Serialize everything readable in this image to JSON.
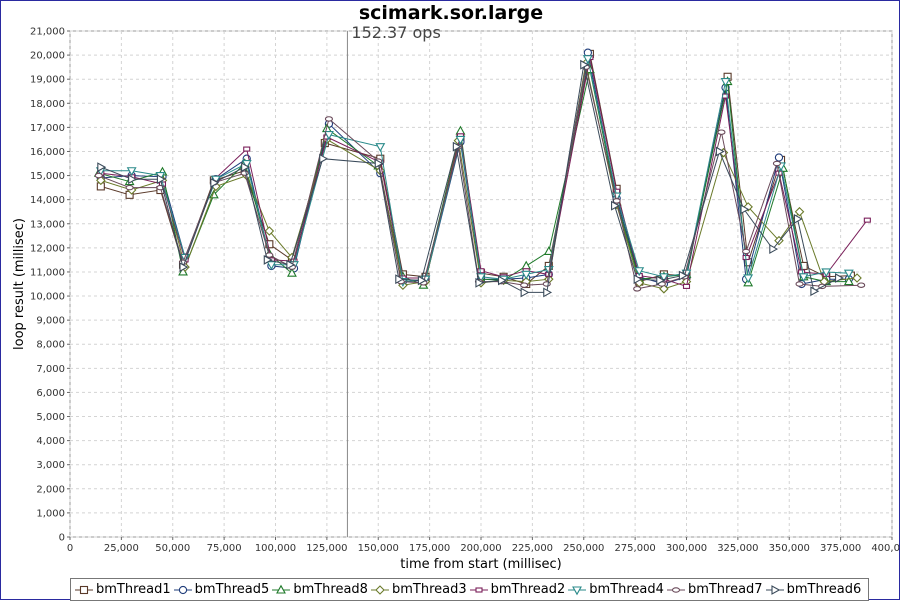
{
  "chart_data": {
    "type": "line",
    "title": "scimark.sor.large",
    "annotation": "152.37 ops",
    "annotation_x": 135000,
    "xlabel": "time from start (millisec)",
    "ylabel": "loop result (millisec)",
    "xlim": [
      0,
      400000
    ],
    "ylim": [
      0,
      21000
    ],
    "xticks": [
      0,
      25000,
      50000,
      75000,
      100000,
      125000,
      150000,
      175000,
      200000,
      225000,
      250000,
      275000,
      300000,
      325000,
      350000,
      375000,
      400000
    ],
    "xtick_labels": [
      "0",
      "25,000",
      "50,000",
      "75,000",
      "100,000",
      "125,000",
      "150,000",
      "175,000",
      "200,000",
      "225,000",
      "250,000",
      "275,000",
      "300,000",
      "325,000",
      "350,000",
      "375,000",
      "400,000"
    ],
    "yticks": [
      0,
      1000,
      2000,
      3000,
      4000,
      5000,
      6000,
      7000,
      8000,
      9000,
      10000,
      11000,
      12000,
      13000,
      14000,
      15000,
      16000,
      17000,
      18000,
      19000,
      20000,
      21000
    ],
    "ytick_labels": [
      "0",
      "1,000",
      "2,000",
      "3,000",
      "4,000",
      "5,000",
      "6,000",
      "7,000",
      "8,000",
      "9,000",
      "10,000",
      "11,000",
      "12,000",
      "13,000",
      "14,000",
      "15,000",
      "16,000",
      "17,000",
      "18,000",
      "19,000",
      "20,000",
      "21,000"
    ],
    "grid": true,
    "legend_position": "bottom",
    "series": [
      {
        "name": "bmThread1",
        "marker": "square",
        "color": "#5a3a2a",
        "points": [
          [
            15000,
            14550
          ],
          [
            29000,
            14200
          ],
          [
            44000,
            14400
          ],
          [
            55000,
            11300
          ],
          [
            70000,
            14800
          ],
          [
            85000,
            15200
          ],
          [
            97000,
            12150
          ],
          [
            108000,
            11500
          ],
          [
            124000,
            16350
          ],
          [
            151000,
            15700
          ],
          [
            162000,
            10900
          ],
          [
            173000,
            10800
          ],
          [
            190000,
            16550
          ],
          [
            200000,
            10950
          ],
          [
            211000,
            10800
          ],
          [
            222000,
            10500
          ],
          [
            233000,
            11250
          ],
          [
            253000,
            20050
          ],
          [
            266000,
            14450
          ],
          [
            277000,
            10600
          ],
          [
            289000,
            10900
          ],
          [
            300000,
            10850
          ],
          [
            320000,
            19100
          ],
          [
            330000,
            11400
          ],
          [
            346000,
            15650
          ],
          [
            357000,
            11250
          ],
          [
            368000,
            10800
          ],
          [
            380000,
            10850
          ]
        ]
      },
      {
        "name": "bmThread5",
        "marker": "circle",
        "color": "#1f3c7a",
        "points": [
          [
            15000,
            14900
          ],
          [
            30000,
            15000
          ],
          [
            45000,
            14950
          ],
          [
            56000,
            11600
          ],
          [
            71000,
            14850
          ],
          [
            86000,
            15700
          ],
          [
            98000,
            11250
          ],
          [
            109000,
            11150
          ],
          [
            126000,
            17150
          ],
          [
            151000,
            15100
          ],
          [
            162000,
            10600
          ],
          [
            173000,
            10650
          ],
          [
            190000,
            16400
          ],
          [
            200000,
            10700
          ],
          [
            211000,
            10700
          ],
          [
            222000,
            10750
          ],
          [
            233000,
            10900
          ],
          [
            252000,
            20100
          ],
          [
            266000,
            14050
          ],
          [
            277000,
            10800
          ],
          [
            289000,
            10500
          ],
          [
            300000,
            10800
          ],
          [
            319000,
            18650
          ],
          [
            329000,
            10700
          ],
          [
            345000,
            15750
          ],
          [
            356000,
            10500
          ],
          [
            368000,
            10700
          ],
          [
            379000,
            10700
          ]
        ]
      },
      {
        "name": "bmThread8",
        "marker": "triangle-up",
        "color": "#1f7a2a",
        "points": [
          [
            14000,
            15100
          ],
          [
            29000,
            14750
          ],
          [
            45000,
            15150
          ],
          [
            55000,
            11000
          ],
          [
            70000,
            14200
          ],
          [
            85000,
            15500
          ],
          [
            97000,
            11750
          ],
          [
            108000,
            10950
          ],
          [
            125000,
            16950
          ],
          [
            150000,
            15400
          ],
          [
            162000,
            10800
          ],
          [
            172000,
            10450
          ],
          [
            190000,
            16850
          ],
          [
            200000,
            10700
          ],
          [
            211000,
            10650
          ],
          [
            222000,
            11250
          ],
          [
            233000,
            11850
          ],
          [
            253000,
            19400
          ],
          [
            266000,
            13900
          ],
          [
            277000,
            10700
          ],
          [
            289000,
            10800
          ],
          [
            300000,
            10900
          ],
          [
            320000,
            18900
          ],
          [
            330000,
            10550
          ],
          [
            347000,
            15300
          ],
          [
            357000,
            10800
          ],
          [
            368000,
            10600
          ],
          [
            379000,
            10600
          ]
        ]
      },
      {
        "name": "bmThread3",
        "marker": "diamond",
        "color": "#6a7a2a",
        "points": [
          [
            15000,
            14800
          ],
          [
            30000,
            14400
          ],
          [
            45000,
            14800
          ],
          [
            56000,
            11200
          ],
          [
            71000,
            14550
          ],
          [
            86000,
            15000
          ],
          [
            97000,
            12700
          ],
          [
            108000,
            11600
          ],
          [
            125000,
            16500
          ],
          [
            151000,
            15200
          ],
          [
            162000,
            10450
          ],
          [
            173000,
            10600
          ],
          [
            189000,
            16450
          ],
          [
            200000,
            10550
          ],
          [
            211000,
            10650
          ],
          [
            222000,
            10600
          ],
          [
            233000,
            10700
          ],
          [
            251000,
            19650
          ],
          [
            266000,
            13800
          ],
          [
            277000,
            10550
          ],
          [
            289000,
            10300
          ],
          [
            300000,
            10600
          ],
          [
            318000,
            15950
          ],
          [
            330000,
            13700
          ],
          [
            345000,
            12300
          ],
          [
            355000,
            13500
          ],
          [
            367000,
            10600
          ],
          [
            383000,
            10750
          ]
        ]
      },
      {
        "name": "bmThread2",
        "marker": "square-small",
        "color": "#7a1f5a",
        "points": [
          [
            15000,
            15100
          ],
          [
            30000,
            14950
          ],
          [
            45000,
            14650
          ],
          [
            56000,
            11500
          ],
          [
            71000,
            14900
          ],
          [
            86000,
            16100
          ],
          [
            98000,
            11500
          ],
          [
            109000,
            11450
          ],
          [
            125000,
            16600
          ],
          [
            151000,
            15550
          ],
          [
            162000,
            10750
          ],
          [
            173000,
            10750
          ],
          [
            190000,
            16650
          ],
          [
            200000,
            11050
          ],
          [
            211000,
            10800
          ],
          [
            222000,
            11050
          ],
          [
            233000,
            10900
          ],
          [
            253000,
            19900
          ],
          [
            266000,
            14350
          ],
          [
            277000,
            10850
          ],
          [
            289000,
            10700
          ],
          [
            300000,
            10400
          ],
          [
            319000,
            18300
          ],
          [
            329000,
            11600
          ],
          [
            345000,
            15100
          ],
          [
            356000,
            11000
          ],
          [
            368000,
            10900
          ],
          [
            388000,
            13150
          ]
        ]
      },
      {
        "name": "bmThread4",
        "marker": "triangle-down",
        "color": "#2a8a8a",
        "points": [
          [
            15000,
            15200
          ],
          [
            30000,
            15200
          ],
          [
            44000,
            15000
          ],
          [
            56000,
            11600
          ],
          [
            71000,
            14850
          ],
          [
            86000,
            15500
          ],
          [
            98000,
            11300
          ],
          [
            109000,
            11300
          ],
          [
            126000,
            16700
          ],
          [
            151000,
            16200
          ],
          [
            162000,
            10600
          ],
          [
            173000,
            10700
          ],
          [
            190000,
            16500
          ],
          [
            200000,
            10800
          ],
          [
            211000,
            10700
          ],
          [
            222000,
            10900
          ],
          [
            233000,
            11100
          ],
          [
            252000,
            19850
          ],
          [
            266000,
            14150
          ],
          [
            277000,
            11050
          ],
          [
            289000,
            10800
          ],
          [
            300000,
            10950
          ],
          [
            319000,
            18900
          ],
          [
            330000,
            10750
          ],
          [
            346000,
            15400
          ],
          [
            357000,
            10800
          ],
          [
            368000,
            11000
          ],
          [
            379000,
            10950
          ]
        ]
      },
      {
        "name": "bmThread7",
        "marker": "circle-small",
        "color": "#6a4a5a",
        "points": [
          [
            14000,
            15000
          ],
          [
            29000,
            14500
          ],
          [
            44000,
            14500
          ],
          [
            55000,
            11400
          ],
          [
            70000,
            14700
          ],
          [
            85000,
            15100
          ],
          [
            97000,
            11700
          ],
          [
            108000,
            11200
          ],
          [
            126000,
            17350
          ],
          [
            150000,
            15600
          ],
          [
            161000,
            10600
          ],
          [
            172000,
            10550
          ],
          [
            189000,
            16200
          ],
          [
            199000,
            10600
          ],
          [
            210000,
            10600
          ],
          [
            221000,
            10450
          ],
          [
            232000,
            10500
          ],
          [
            251000,
            19500
          ],
          [
            266000,
            13950
          ],
          [
            276000,
            10300
          ],
          [
            288000,
            10500
          ],
          [
            299000,
            10800
          ],
          [
            317000,
            16800
          ],
          [
            329000,
            11850
          ],
          [
            344000,
            15500
          ],
          [
            355000,
            10500
          ],
          [
            366000,
            10400
          ],
          [
            385000,
            10450
          ]
        ]
      },
      {
        "name": "bmThread6",
        "marker": "triangle-right",
        "color": "#3a4a5a",
        "points": [
          [
            15000,
            15350
          ],
          [
            30000,
            14850
          ],
          [
            44000,
            14850
          ],
          [
            55000,
            11200
          ],
          [
            70000,
            14700
          ],
          [
            85000,
            15350
          ],
          [
            96000,
            11500
          ],
          [
            107000,
            11300
          ],
          [
            123000,
            15700
          ],
          [
            150000,
            15500
          ],
          [
            160000,
            10700
          ],
          [
            171000,
            10650
          ],
          [
            188000,
            16200
          ],
          [
            199000,
            10550
          ],
          [
            210000,
            10650
          ],
          [
            221000,
            10150
          ],
          [
            232000,
            10150
          ],
          [
            250000,
            19600
          ],
          [
            265000,
            13750
          ],
          [
            276000,
            10700
          ],
          [
            287000,
            10650
          ],
          [
            298000,
            10850
          ],
          [
            316000,
            16000
          ],
          [
            328000,
            13600
          ],
          [
            342000,
            11950
          ],
          [
            354000,
            13200
          ],
          [
            362000,
            10200
          ],
          [
            374000,
            10750
          ]
        ]
      }
    ]
  }
}
